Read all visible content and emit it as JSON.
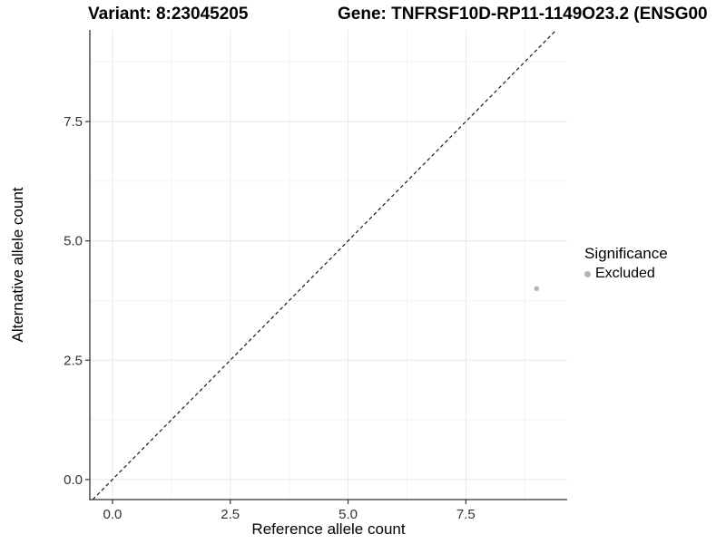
{
  "chart_data": {
    "type": "scatter",
    "titles": {
      "left": "Variant: 8:23045205",
      "right": "Gene: TNFRSF10D-RP11-1149O23.2 (ENSG00"
    },
    "xlabel": "Reference allele count",
    "ylabel": "Alternative allele count",
    "xlim": [
      -0.48,
      9.65
    ],
    "ylim": [
      -0.42,
      9.42
    ],
    "x_major_ticks": [
      0,
      2.5,
      5,
      7.5
    ],
    "y_major_ticks": [
      0,
      2.5,
      5,
      7.5
    ],
    "x_tick_labels": [
      "0.0",
      "2.5",
      "5.0",
      "7.5"
    ],
    "y_tick_labels": [
      "0.0",
      "2.5",
      "5.0",
      "7.5"
    ],
    "x_minor_ticks": [
      1.25,
      3.75,
      6.25,
      8.75
    ],
    "y_minor_ticks": [
      1.25,
      3.75,
      6.25,
      8.75
    ],
    "grid": true,
    "identity_line": {
      "slope": 1,
      "intercept": 0,
      "style": "dashed"
    },
    "series": [
      {
        "name": "Excluded",
        "color": "#b3b3b3",
        "points": [
          {
            "x": 9,
            "y": 4
          }
        ]
      }
    ],
    "legend": {
      "title": "Significance",
      "position": "right",
      "items": [
        {
          "label": "Excluded",
          "color": "#b3b3b3"
        }
      ]
    },
    "colors": {
      "background": "#ffffff",
      "grid_major": "#e8e8e8",
      "grid_minor": "#f3f3f3",
      "axis_line": "#333333",
      "tick_text": "#333333",
      "identity_line": "#1a1a1a",
      "point": "#b3b3b3"
    }
  }
}
